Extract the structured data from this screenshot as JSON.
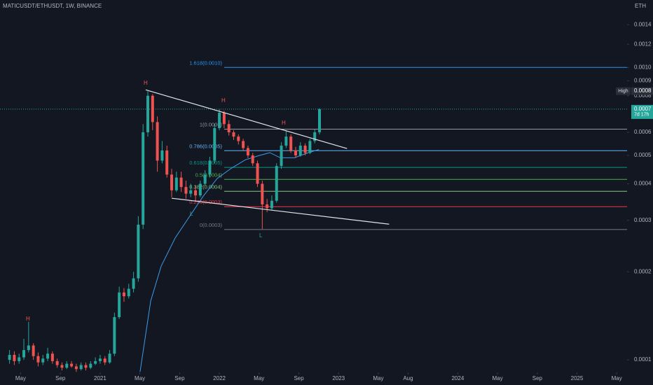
{
  "chart_data": {
    "type": "candlestick",
    "title": "MATICUSDT/ETHUSDT, 1W, BINANCE",
    "y_unit": "ETH",
    "log_scale": true,
    "grid": false,
    "up_color": "#26a69a",
    "down_color": "#ef5350",
    "x": [
      2020.24,
      2020.28,
      2020.32,
      2020.36,
      2020.4,
      2020.44,
      2020.48,
      2020.52,
      2020.56,
      2020.6,
      2020.64,
      2020.68,
      2020.72,
      2020.76,
      2020.8,
      2020.84,
      2020.88,
      2020.92,
      2020.96,
      2021,
      2021.04,
      2021.08,
      2021.12,
      2021.16,
      2021.2,
      2021.24,
      2021.28,
      2021.32,
      2021.36,
      2021.4,
      2021.44,
      2021.48,
      2021.52,
      2021.56,
      2021.6,
      2021.64,
      2021.68,
      2021.72,
      2021.76,
      2021.8,
      2021.84,
      2021.88,
      2021.92,
      2021.96,
      2022,
      2022.04,
      2022.08,
      2022.12,
      2022.16,
      2022.2,
      2022.24,
      2022.28,
      2022.32,
      2022.36,
      2022.4,
      2022.44,
      2022.48,
      2022.52,
      2022.56,
      2022.6,
      2022.64,
      2022.68,
      2022.72,
      2022.76,
      2022.8,
      2022.84
    ],
    "open": [
      0.0001,
      0.000104,
      9.9e-05,
      0.000102,
      0.000108,
      0.000112,
      0.000103,
      9.8e-05,
      0.000101,
      0.000105,
      9.9e-05,
      9.6e-05,
      9.4e-05,
      9.7e-05,
      9.5e-05,
      9.3e-05,
      9.6e-05,
      9.4e-05,
      9.7e-05,
      9.9e-05,
      0.000101,
      9.8e-05,
      0.000105,
      0.00014,
      0.00017,
      0.000165,
      0.000175,
      0.00019,
      0.00029,
      0.0006,
      0.0008,
      0.00065,
      0.00048,
      0.00052,
      0.00043,
      0.00038,
      0.00042,
      0.00039,
      0.00037,
      0.00038,
      0.000365,
      0.0004,
      0.00043,
      0.00048,
      0.00062,
      0.0007,
      0.00064,
      0.0006,
      0.00058,
      0.00056,
      0.00053,
      0.0005,
      0.00047,
      0.0004,
      0.00034,
      0.00033,
      0.00035,
      0.00046,
      0.00054,
      0.00058,
      0.00052,
      0.0005,
      0.00054,
      0.00051,
      0.00056,
      0.0006
    ],
    "high": [
      0.000108,
      0.000107,
      0.000105,
      0.000118,
      0.000135,
      0.000114,
      0.000106,
      0.000104,
      0.00011,
      0.000107,
      0.000101,
      9.8e-05,
      9.9e-05,
      9.9e-05,
      9.7e-05,
      9.8e-05,
      9.8e-05,
      9.9e-05,
      0.000102,
      0.000104,
      0.000103,
      0.000108,
      0.000145,
      0.000178,
      0.000176,
      0.000182,
      0.0002,
      0.00031,
      0.00064,
      0.00083,
      0.00081,
      0.00068,
      0.00056,
      0.00054,
      0.00045,
      0.00044,
      0.00044,
      0.00041,
      0.0004,
      0.000395,
      0.00041,
      0.000445,
      0.000495,
      0.00064,
      0.00072,
      0.00071,
      0.00066,
      0.00061,
      0.00059,
      0.00057,
      0.00054,
      0.00051,
      0.00048,
      0.00041,
      0.000355,
      0.000365,
      0.00047,
      0.000555,
      0.00061,
      0.00059,
      0.000535,
      0.000555,
      0.00055,
      0.00057,
      0.000615,
      0.000725
    ],
    "low": [
      9.7e-05,
      9.6e-05,
      9.7e-05,
      0.0001,
      0.000106,
      0.0001,
      9.5e-05,
      9.6e-05,
      9.9e-05,
      9.7e-05,
      9.4e-05,
      9.2e-05,
      9.3e-05,
      9.4e-05,
      9.1e-05,
      9.2e-05,
      9.2e-05,
      9.3e-05,
      9.6e-05,
      9.7e-05,
      9.6e-05,
      9.7e-05,
      0.000103,
      0.000138,
      0.000158,
      0.000162,
      0.00017,
      0.000185,
      0.00028,
      0.00058,
      0.00061,
      0.00044,
      0.00047,
      0.00042,
      0.00036,
      0.000375,
      0.000375,
      0.000355,
      0.00036,
      0.00035,
      0.00036,
      0.000395,
      0.00042,
      0.00047,
      0.00061,
      0.00062,
      0.000585,
      0.000565,
      0.000545,
      0.00052,
      0.00049,
      0.00046,
      0.00039,
      0.00028,
      0.00032,
      0.000325,
      0.000345,
      0.00045,
      0.00053,
      0.00051,
      0.00049,
      0.000495,
      0.0005,
      0.000505,
      0.00055,
      0.00059
    ],
    "close": [
      0.000104,
      9.9e-05,
      0.000102,
      0.000108,
      0.000112,
      0.000103,
      9.8e-05,
      0.000101,
      0.000105,
      9.9e-05,
      9.6e-05,
      9.4e-05,
      9.7e-05,
      9.5e-05,
      9.3e-05,
      9.6e-05,
      9.4e-05,
      9.7e-05,
      9.9e-05,
      0.000101,
      9.8e-05,
      0.000105,
      0.00014,
      0.00017,
      0.000165,
      0.000175,
      0.00019,
      0.00029,
      0.0006,
      0.0008,
      0.00065,
      0.00048,
      0.00052,
      0.00043,
      0.00038,
      0.00042,
      0.00039,
      0.00037,
      0.00038,
      0.000365,
      0.0004,
      0.00043,
      0.00048,
      0.00062,
      0.0007,
      0.00064,
      0.0006,
      0.00058,
      0.00056,
      0.00053,
      0.0005,
      0.00047,
      0.0004,
      0.00034,
      0.00033,
      0.00035,
      0.00046,
      0.00054,
      0.00058,
      0.00052,
      0.0005,
      0.00054,
      0.00051,
      0.00056,
      0.0006,
      0.00072
    ],
    "moving_average": {
      "color": "#3d9be9",
      "x": [
        2021.335,
        2021.424,
        2021.512,
        2021.629,
        2021.747,
        2021.865,
        2021.982,
        2022.1,
        2022.218,
        2022.335,
        2022.424,
        2022.512,
        2022.629,
        2022.747,
        2022.835
      ],
      "values": [
        9.1e-05,
        0.000159,
        0.000209,
        0.000261,
        0.000308,
        0.000363,
        0.000417,
        0.000452,
        0.000483,
        0.0005,
        0.000511,
        0.000491,
        0.000491,
        0.000511,
        0.000524
      ]
    },
    "trendlines": [
      {
        "color": "#e0e3eb",
        "x": [
          2021.382,
          2023.071
        ],
        "values": [
          0.000838,
          0.000528
        ]
      },
      {
        "color": "#e0e3eb",
        "x": [
          2021.6,
          2023.424
        ],
        "values": [
          0.000357,
          0.000291
        ]
      }
    ],
    "fib_levels": [
      {
        "label": "1.618(0.0010)",
        "value": 0.001,
        "color": "#2196f3"
      },
      {
        "label": "1(0.0006)",
        "value": 0.000615,
        "color": "#9598a1"
      },
      {
        "label": "0.786(0.0005)",
        "value": 0.000519,
        "color": "#64b5f6"
      },
      {
        "label": "0.618(0.0005)",
        "value": 0.000455,
        "color": "#089981"
      },
      {
        "label": "0.5(0.0004)",
        "value": 0.000414,
        "color": "#4caf50"
      },
      {
        "label": "0.382(0.0004)",
        "value": 0.000377,
        "color": "#81c784"
      },
      {
        "label": "0.236(0.0003)",
        "value": 0.000334,
        "color": "#f23645"
      },
      {
        "label": "0(0.0003)",
        "value": 0.000279,
        "color": "#787b86"
      }
    ],
    "annotations": [
      "H",
      "H",
      "H",
      "H",
      "L",
      "L"
    ],
    "high_marker": {
      "text": "High",
      "value": 0.00083,
      "label": "0.0008"
    },
    "last_price": {
      "value": 0.00072,
      "label": "0.0007",
      "countdown": "7d 17h",
      "color": "#26a69a"
    },
    "xlim": [
      2020.16,
      2025.42
    ],
    "xticks": [
      {
        "value": 2020.333,
        "label": "May"
      },
      {
        "value": 2020.667,
        "label": "Sep"
      },
      2021,
      {
        "value": 2021.333,
        "label": "May"
      },
      {
        "value": 2021.667,
        "label": "Sep"
      },
      2022,
      {
        "value": 2022.333,
        "label": "May"
      },
      {
        "value": 2022.667,
        "label": "Sep"
      },
      2023,
      {
        "value": 2023.333,
        "label": "May"
      },
      {
        "value": 2023.583,
        "label": "Aug"
      },
      2024,
      {
        "value": 2024.333,
        "label": "May"
      },
      {
        "value": 2024.667,
        "label": "Sep"
      },
      2025,
      {
        "value": 2025.333,
        "label": "May"
      }
    ],
    "ylim": [
      9.06e-05,
      0.0017
    ],
    "yticks": [
      0.0001,
      0.0002,
      0.0003,
      0.0004,
      0.0005,
      0.0006,
      0.0008,
      0.0009,
      {
        "value": 0.001,
        "label": "0.0010"
      },
      0.0012,
      0.0014
    ]
  }
}
